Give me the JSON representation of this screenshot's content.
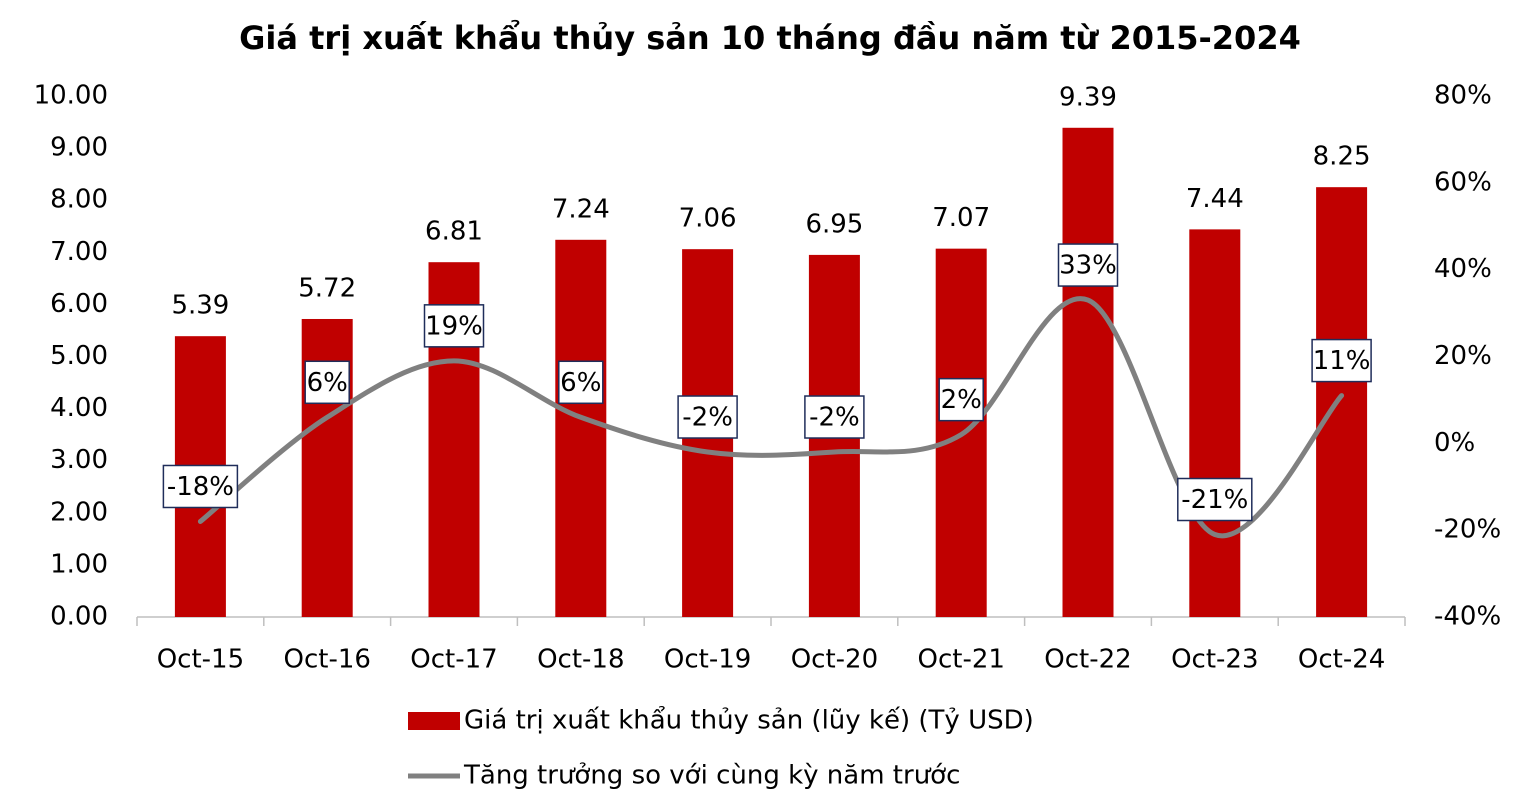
{
  "chart_data": {
    "type": "bar_line",
    "title": "Giá trị xuất khẩu thủy sản 10 tháng đầu năm từ 2015-2024",
    "categories": [
      "Oct-15",
      "Oct-16",
      "Oct-17",
      "Oct-18",
      "Oct-19",
      "Oct-20",
      "Oct-21",
      "Oct-22",
      "Oct-23",
      "Oct-24"
    ],
    "series": [
      {
        "name": "Giá trị xuất khẩu thủy sản (lũy kế) (Tỷ USD)",
        "type": "bar",
        "color": "#c00000",
        "values": [
          5.39,
          5.72,
          6.81,
          7.24,
          7.06,
          6.95,
          7.07,
          9.39,
          7.44,
          8.25
        ]
      },
      {
        "name": "Tăng trưởng so với cùng kỳ năm trước",
        "type": "line",
        "axis": "y2",
        "color": "#808080",
        "values": [
          -18,
          6,
          19,
          6,
          -2,
          -2,
          2,
          33,
          -21,
          11
        ],
        "value_labels": [
          "-18%",
          "6%",
          "19%",
          "6%",
          "-2%",
          "-2%",
          "2%",
          "33%",
          "-21%",
          "11%"
        ]
      }
    ],
    "ylim": [
      0,
      10
    ],
    "yticks": [
      {
        "value": 0,
        "label": "0.00"
      },
      {
        "value": 1,
        "label": "1.00"
      },
      {
        "value": 2,
        "label": "2.00"
      },
      {
        "value": 3,
        "label": "3.00"
      },
      {
        "value": 4,
        "label": "4.00"
      },
      {
        "value": 5,
        "label": "5.00"
      },
      {
        "value": 6,
        "label": "6.00"
      },
      {
        "value": 7,
        "label": "7.00"
      },
      {
        "value": 8,
        "label": "8.00"
      },
      {
        "value": 9,
        "label": "9.00"
      },
      {
        "value": 10,
        "label": "10.00"
      }
    ],
    "y2lim": [
      -40,
      80
    ],
    "y2ticks": [
      {
        "value": -40,
        "label": "-40%"
      },
      {
        "value": -20,
        "label": "-20%"
      },
      {
        "value": 0,
        "label": "0%"
      },
      {
        "value": 20,
        "label": "20%"
      },
      {
        "value": 40,
        "label": "40%"
      },
      {
        "value": 60,
        "label": "60%"
      },
      {
        "value": 80,
        "label": "80%"
      }
    ],
    "grid": false,
    "legend": "bottom"
  }
}
